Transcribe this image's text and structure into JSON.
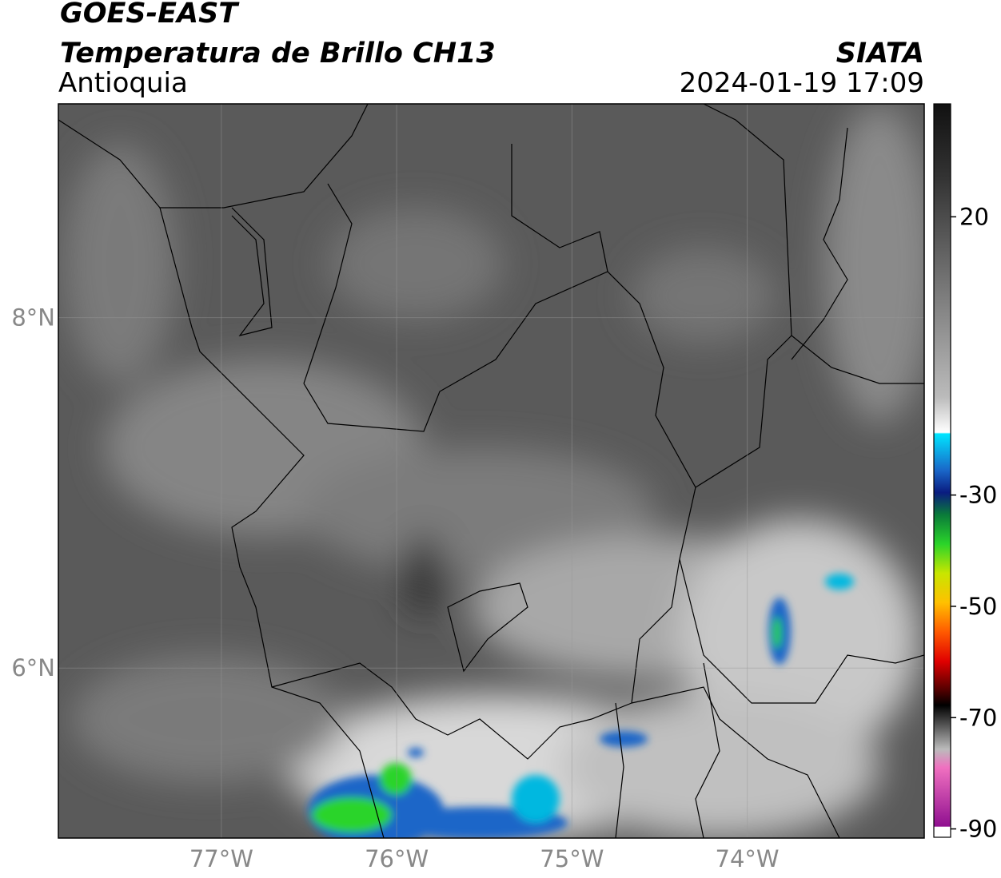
{
  "header": {
    "title": "GOES-EAST",
    "subtitle": "Temperatura de Brillo CH13",
    "region": "Antioquia",
    "source": "SIATA",
    "datetime": "2024-01-19 17:09"
  },
  "map": {
    "xlim": [
      -77.93,
      -72.99
    ],
    "ylim": [
      5.03,
      9.22
    ],
    "lon_ticks": [
      {
        "value": -77,
        "label": "77°W"
      },
      {
        "value": -76,
        "label": "76°W"
      },
      {
        "value": -75,
        "label": "75°W"
      },
      {
        "value": -74,
        "label": "74°W"
      }
    ],
    "lat_ticks": [
      {
        "value": 8,
        "label": "8°N"
      },
      {
        "value": 6,
        "label": "6°N"
      }
    ]
  },
  "colorbar": {
    "lim": [
      -91.5,
      40.3
    ],
    "ticks": [
      20,
      -30,
      -50,
      -70,
      -90
    ]
  }
}
